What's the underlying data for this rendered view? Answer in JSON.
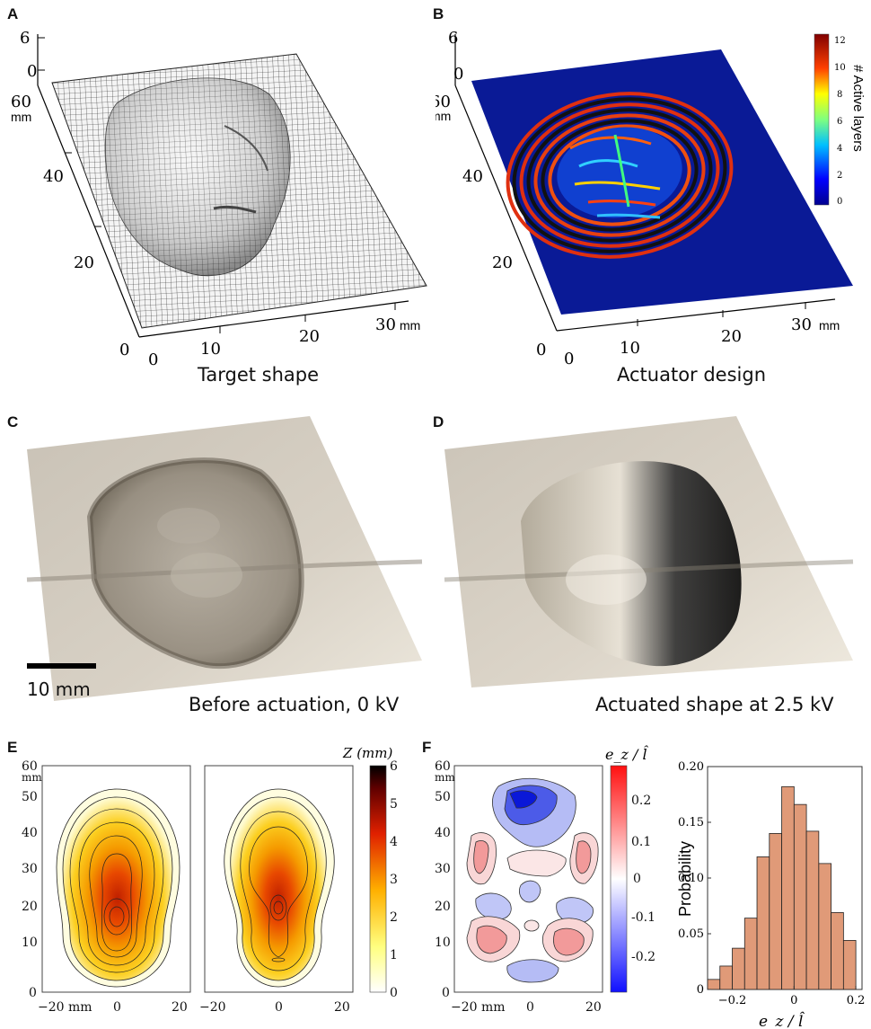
{
  "panels": {
    "A": {
      "letter": "A",
      "caption": "Target shape",
      "ticks_z": [
        "6",
        "0"
      ],
      "ticks_y": [
        "60",
        "40",
        "20",
        "0"
      ],
      "unit_y": "mm",
      "ticks_x": [
        "0",
        "10",
        "20",
        "30"
      ],
      "unit_x": "mm"
    },
    "B": {
      "letter": "B",
      "caption": "Actuator design",
      "ticks_z": [
        "6",
        "0"
      ],
      "ticks_y": [
        "60",
        "40",
        "20",
        "0"
      ],
      "unit_y": "mm",
      "ticks_x": [
        "0",
        "10",
        "20",
        "30"
      ],
      "unit_x": "mm",
      "colorbar_label": "# Active layers",
      "colorbar_ticks": [
        "12",
        "10",
        "8",
        "6",
        "4",
        "2",
        "0"
      ]
    },
    "C": {
      "letter": "C",
      "caption": "Before actuation, 0 kV",
      "scalebar": "10 mm"
    },
    "D": {
      "letter": "D",
      "caption": "Actuated shape at 2.5 kV"
    },
    "E": {
      "letter": "E",
      "y_ticks": [
        "60",
        "50",
        "40",
        "30",
        "20",
        "10",
        "0"
      ],
      "y_unit": "mm",
      "x_ticks": [
        "−20 mm",
        "0",
        "20"
      ],
      "x_ticks_2": [
        "−20",
        "0",
        "20"
      ],
      "colorbar_label": "Z (mm)",
      "colorbar_ticks": [
        "6",
        "5",
        "4",
        "3",
        "2",
        "1",
        "0"
      ]
    },
    "F": {
      "letter": "F",
      "y_ticks": [
        "60",
        "50",
        "40",
        "30",
        "20",
        "10",
        "0"
      ],
      "y_unit": "mm",
      "x_ticks": [
        "−20 mm",
        "0",
        "20"
      ],
      "colorbar_label": "e_z / l̂",
      "colorbar_ticks": [
        "0.2",
        "0.1",
        "0",
        "-0.1",
        "-0.2"
      ]
    }
  },
  "chart_data": {
    "type": "bar",
    "title": "",
    "xlabel": "e_z / l̂",
    "ylabel": "Probability",
    "x_ticks": [
      "−0.2",
      "0",
      "0.2"
    ],
    "y_ticks": [
      "0",
      "0.05",
      "0.10",
      "0.15",
      "0.20"
    ],
    "ylim": [
      0,
      0.2
    ],
    "xlim": [
      -0.28,
      0.22
    ],
    "bin_width": 0.04,
    "bin_centers": [
      -0.26,
      -0.22,
      -0.18,
      -0.14,
      -0.1,
      -0.06,
      -0.02,
      0.02,
      0.06,
      0.1,
      0.14,
      0.18
    ],
    "values": [
      0.009,
      0.021,
      0.037,
      0.064,
      0.119,
      0.14,
      0.182,
      0.166,
      0.142,
      0.113,
      0.069,
      0.044
    ],
    "bar_color": "#e09a78",
    "grid": false
  }
}
